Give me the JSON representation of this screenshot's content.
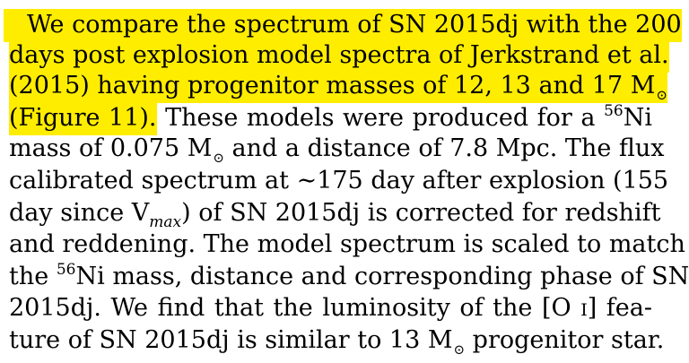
{
  "paragraph": {
    "l1_text": "We compare the spectrum of SN 2015dj with the 200",
    "l2_text": "days post explosion model spectra of Jerkstrand et al.",
    "l3_a": "(2015) having progenitor masses of 12, 13 and 17 M",
    "sun_symbol": "⊙",
    "l4_a": "(Figure 11).",
    "l4_b": "These models were produced for a",
    "ni56_superscript": "56",
    "ni_symbol": "Ni",
    "l5_a": "mass of 0.075 M",
    "l5_b": "and a distance of 7.8 Mpc. The flux",
    "l6_text": "calibrated spectrum at ∼175 day after explosion (155",
    "l7_a": "day since V",
    "l7_sub": "max",
    "l7_b": ") of SN 2015dj is corrected for redshift",
    "l8_text": "and reddening. The model spectrum is scaled to match",
    "l9_a": "the",
    "l9_b": "mass, distance and corresponding phase of SN",
    "l10_a": "2015dj. We find that the luminosity of the [O",
    "l10_roman": "i",
    "l10_b": "] fea-",
    "l11_a": "ture of SN 2015dj is similar to 13 M",
    "l11_b": "progenitor star."
  }
}
